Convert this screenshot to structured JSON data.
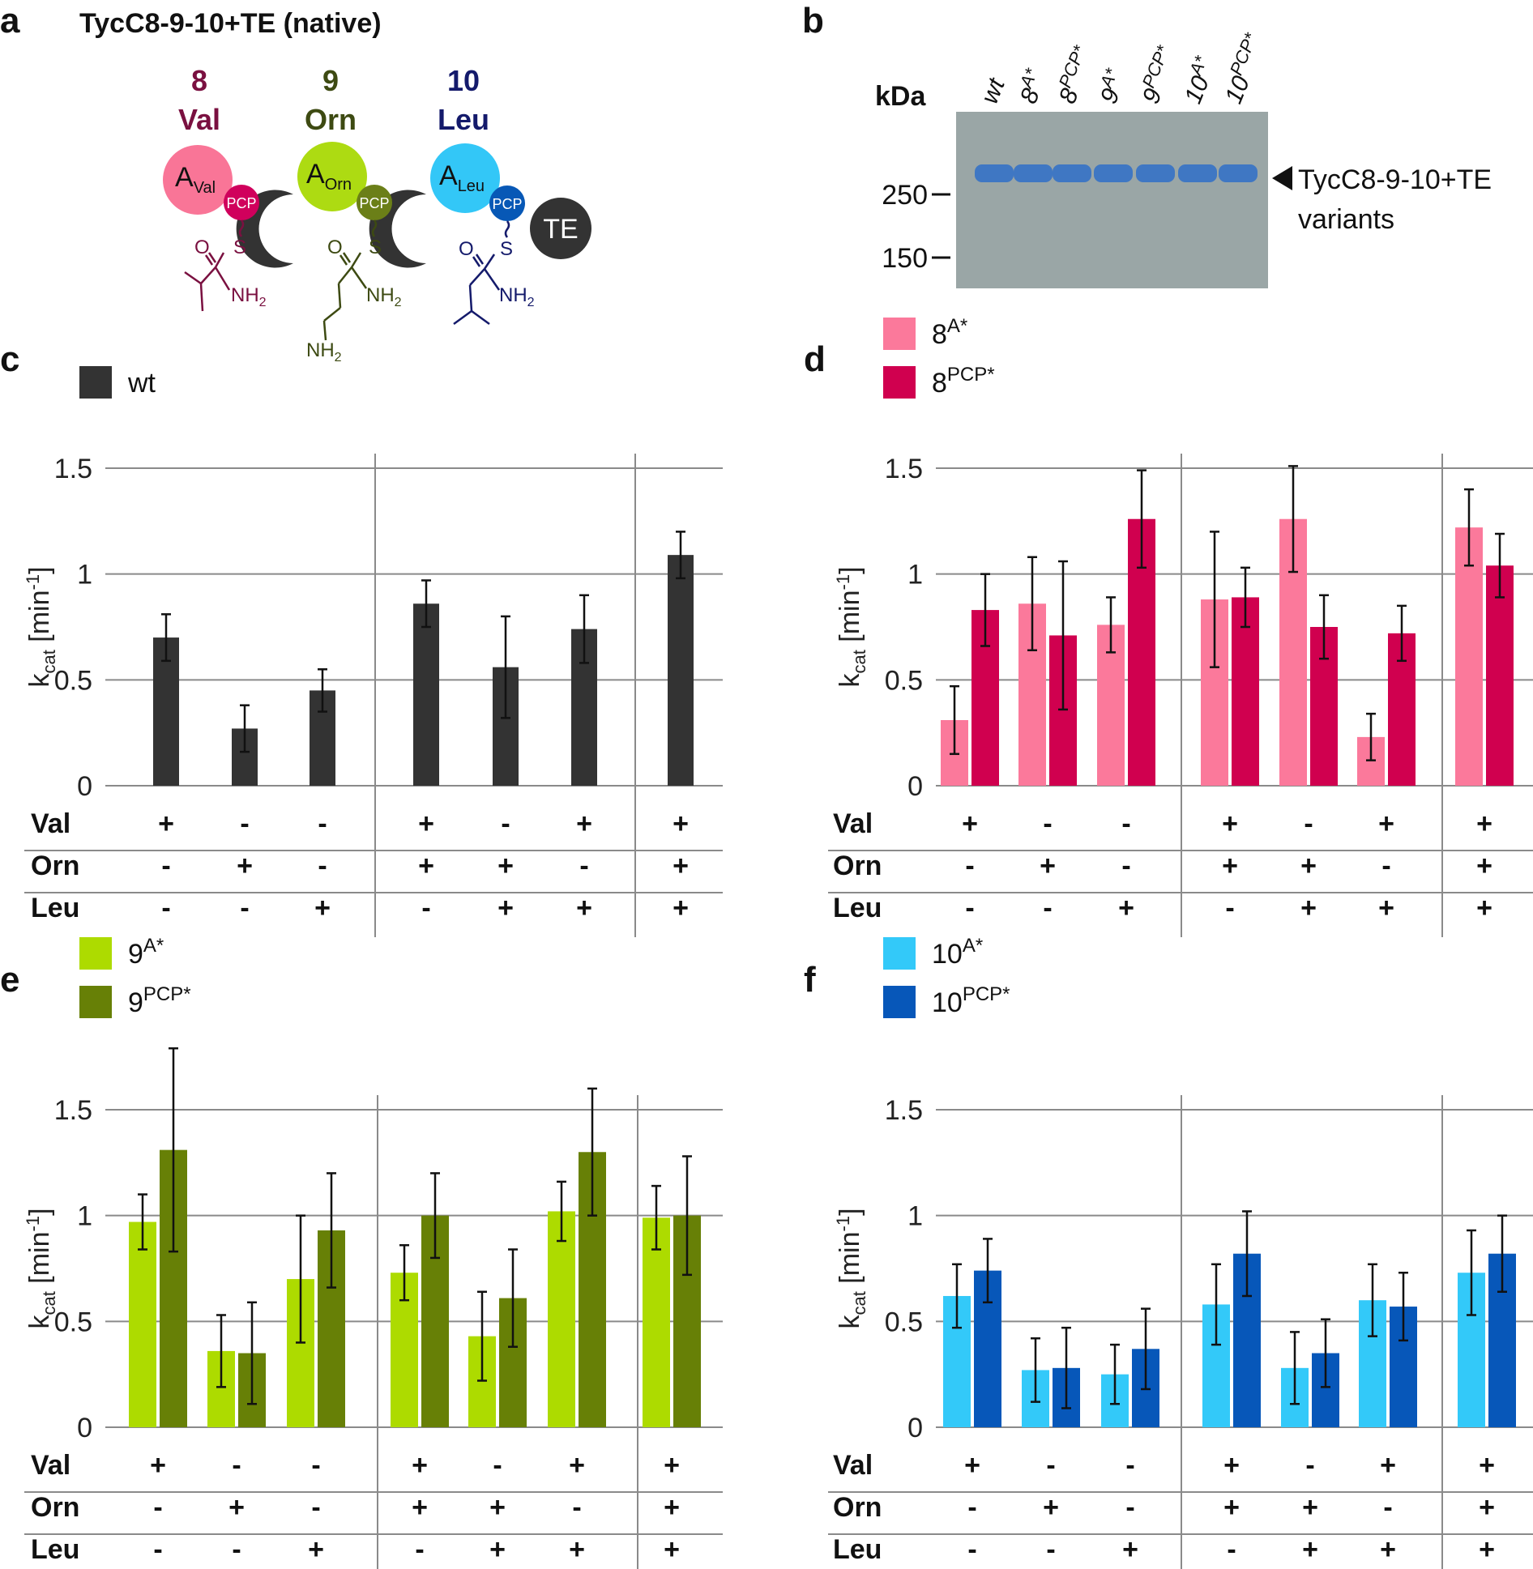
{
  "panel_labels": {
    "a": "a",
    "b": "b",
    "c": "c",
    "d": "d",
    "e": "e",
    "f": "f"
  },
  "panel_a": {
    "title": "TycC8-9-10+TE (native)",
    "modules": [
      {
        "number": "8",
        "aa": "Val",
        "color": "#7a1040",
        "a_domain": "A",
        "a_sub": "Val",
        "a_color": "#f97597",
        "pcp_color": "#d0005c"
      },
      {
        "number": "9",
        "aa": "Orn",
        "color": "#3d4a12",
        "a_domain": "A",
        "a_sub": "Orn",
        "a_color": "#addb12",
        "pcp_color": "#6b7f18"
      },
      {
        "number": "10",
        "aa": "Leu",
        "color": "#141a6b",
        "a_domain": "A",
        "a_sub": "Leu",
        "a_color": "#33c7f7",
        "pcp_color": "#0758b6"
      }
    ],
    "pcp_label": "PCP",
    "c_label": "C",
    "te_label": "TE",
    "chem": {
      "o": "O",
      "s": "S",
      "nh2": "NH",
      "sub2": "2"
    }
  },
  "panel_b": {
    "kda_label": "kDa",
    "lanes": [
      {
        "base": "wt",
        "sup": ""
      },
      {
        "base": "8",
        "sup": "A*"
      },
      {
        "base": "8",
        "sup": "PCP*"
      },
      {
        "base": "9",
        "sup": "A*"
      },
      {
        "base": "9",
        "sup": "PCP*"
      },
      {
        "base": "10",
        "sup": "A*"
      },
      {
        "base": "10",
        "sup": "PCP*"
      }
    ],
    "markers": [
      "250",
      "150"
    ],
    "band_label_line1": "TycC8-9-10+TE",
    "band_label_line2": "variants"
  },
  "axis": {
    "ylabel_main": "k",
    "ylabel_sub": "cat",
    "ylabel_unit": " [min",
    "ylabel_sup": "-1",
    "ylabel_end": "]",
    "yticks": [
      "0",
      "0.5",
      "1",
      "1.5"
    ],
    "rows": [
      "Val",
      "Orn",
      "Leu"
    ],
    "conditions": {
      "Val": [
        "+",
        "-",
        "-",
        "+",
        "-",
        "+",
        "+"
      ],
      "Orn": [
        "-",
        "+",
        "-",
        "+",
        "+",
        "-",
        "+"
      ],
      "Leu": [
        "-",
        "-",
        "+",
        "-",
        "+",
        "+",
        "+"
      ]
    }
  },
  "colors": {
    "grid": "#8a8a8a",
    "wt": "#333333",
    "8A": "#fb799b",
    "8PCP": "#d0004f",
    "9A": "#addb00",
    "9PCP": "#678006",
    "10A": "#33c9f9",
    "10PCP": "#0757b9"
  },
  "chart_data": [
    {
      "panel": "c",
      "type": "bar",
      "categories": [
        "Val+ Orn- Leu-",
        "Val- Orn+ Leu-",
        "Val- Orn- Leu+",
        "Val+ Orn+ Leu-",
        "Val- Orn+ Leu+",
        "Val+ Orn- Leu+",
        "Val+ Orn+ Leu+"
      ],
      "ylim": [
        0,
        1.5
      ],
      "ylabel": "kcat [min-1]",
      "series": [
        {
          "name": "wt",
          "legend_base": "wt",
          "legend_sup": "",
          "color": "#333333",
          "values": [
            0.7,
            0.27,
            0.45,
            0.86,
            0.56,
            0.74,
            1.09
          ],
          "errors": [
            0.11,
            0.11,
            0.1,
            0.11,
            0.24,
            0.16,
            0.11
          ]
        }
      ]
    },
    {
      "panel": "d",
      "type": "bar",
      "categories": [
        "Val+ Orn- Leu-",
        "Val- Orn+ Leu-",
        "Val- Orn- Leu+",
        "Val+ Orn+ Leu-",
        "Val- Orn+ Leu+",
        "Val+ Orn- Leu+",
        "Val+ Orn+ Leu+"
      ],
      "ylim": [
        0,
        1.5
      ],
      "ylabel": "kcat [min-1]",
      "series": [
        {
          "name": "8A*",
          "legend_base": "8",
          "legend_sup": "A*",
          "color": "#fb799b",
          "values": [
            0.31,
            0.86,
            0.76,
            0.88,
            1.26,
            0.23,
            1.22
          ],
          "errors": [
            0.16,
            0.22,
            0.13,
            0.32,
            0.25,
            0.11,
            0.18
          ]
        },
        {
          "name": "8PCP*",
          "legend_base": "8",
          "legend_sup": "PCP*",
          "color": "#d0004f",
          "values": [
            0.83,
            0.71,
            1.26,
            0.89,
            0.75,
            0.72,
            1.04
          ],
          "errors": [
            0.17,
            0.35,
            0.23,
            0.14,
            0.15,
            0.13,
            0.15
          ]
        }
      ]
    },
    {
      "panel": "e",
      "type": "bar",
      "categories": [
        "Val+ Orn- Leu-",
        "Val- Orn+ Leu-",
        "Val- Orn- Leu+",
        "Val+ Orn+ Leu-",
        "Val- Orn+ Leu+",
        "Val+ Orn- Leu+",
        "Val+ Orn+ Leu+"
      ],
      "ylim": [
        0,
        1.5
      ],
      "ylabel": "kcat [min-1]",
      "series": [
        {
          "name": "9A*",
          "legend_base": "9",
          "legend_sup": "A*",
          "color": "#addb00",
          "values": [
            0.97,
            0.36,
            0.7,
            0.73,
            0.43,
            1.02,
            0.99
          ],
          "errors": [
            0.13,
            0.17,
            0.3,
            0.13,
            0.21,
            0.14,
            0.15
          ]
        },
        {
          "name": "9PCP*",
          "legend_base": "9",
          "legend_sup": "PCP*",
          "color": "#678006",
          "values": [
            1.31,
            0.35,
            0.93,
            1.0,
            0.61,
            1.3,
            1.0
          ],
          "errors": [
            0.48,
            0.24,
            0.27,
            0.2,
            0.23,
            0.3,
            0.28
          ]
        }
      ]
    },
    {
      "panel": "f",
      "type": "bar",
      "categories": [
        "Val+ Orn- Leu-",
        "Val- Orn+ Leu-",
        "Val- Orn- Leu+",
        "Val+ Orn+ Leu-",
        "Val- Orn+ Leu+",
        "Val+ Orn- Leu+",
        "Val+ Orn+ Leu+"
      ],
      "ylim": [
        0,
        1.5
      ],
      "ylabel": "kcat [min-1]",
      "series": [
        {
          "name": "10A*",
          "legend_base": "10",
          "legend_sup": "A*",
          "color": "#33c9f9",
          "values": [
            0.62,
            0.27,
            0.25,
            0.58,
            0.28,
            0.6,
            0.73
          ],
          "errors": [
            0.15,
            0.15,
            0.14,
            0.19,
            0.17,
            0.17,
            0.2
          ]
        },
        {
          "name": "10PCP*",
          "legend_base": "10",
          "legend_sup": "PCP*",
          "color": "#0757b9",
          "values": [
            0.74,
            0.28,
            0.37,
            0.82,
            0.35,
            0.57,
            0.82
          ],
          "errors": [
            0.15,
            0.19,
            0.19,
            0.2,
            0.16,
            0.16,
            0.18
          ]
        }
      ]
    }
  ]
}
